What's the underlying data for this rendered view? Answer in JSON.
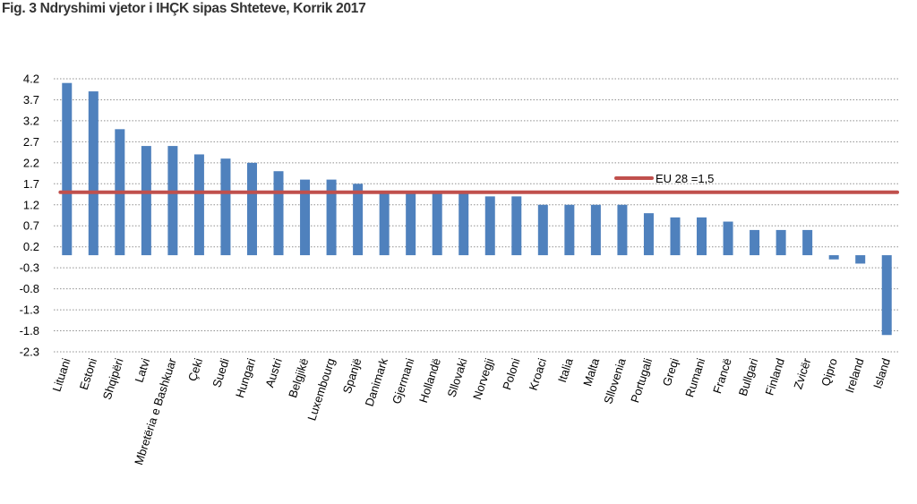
{
  "title": "Fig. 3 Ndryshimi vjetor i IHÇK sipas Shteteve, Korrik 2017",
  "colors": {
    "bar": "#4F81BD",
    "reference_line": "#C0504D",
    "grid": "#909090"
  },
  "chart_data": {
    "type": "bar",
    "title": "Fig. 3 Ndryshimi vjetor i IHÇK sipas Shteteve, Korrik 2017",
    "xlabel": "",
    "ylabel": "",
    "ylim": [
      -2.3,
      4.2
    ],
    "yticks": [
      "4.2",
      "3.7",
      "3.2",
      "2.7",
      "2.2",
      "1.7",
      "1.2",
      "0.7",
      "0.2",
      "-0.3",
      "-0.8",
      "-1.3",
      "-1.8",
      "-2.3"
    ],
    "grid": true,
    "categories": [
      "Lituani",
      "Estoni",
      "Shqipëri",
      "Latvi",
      "Mbretëria e Bashkuar",
      "Çeki",
      "Suedi",
      "Hungari",
      "Austri",
      "Belgjikë",
      "Luxembourg",
      "Spanjë",
      "Danimark",
      "Gjermani",
      "Hollandë",
      "Sllovaki",
      "Norvegji",
      "Poloni",
      "Kroaci",
      "Italia",
      "Malta",
      "Sllovenia",
      "Portugali",
      "Greqi",
      "Rumani",
      "Francë",
      "Bullgari",
      "Finland",
      "Zvicër",
      "Qipro",
      "Ireland",
      "Island"
    ],
    "values": [
      4.1,
      3.9,
      3.0,
      2.6,
      2.6,
      2.4,
      2.3,
      2.2,
      2.0,
      1.8,
      1.8,
      1.7,
      1.5,
      1.5,
      1.5,
      1.5,
      1.4,
      1.4,
      1.2,
      1.2,
      1.2,
      1.2,
      1.0,
      0.9,
      0.9,
      0.8,
      0.6,
      0.6,
      0.6,
      -0.1,
      -0.2,
      -1.9
    ],
    "reference_line": {
      "label": "EU 28 =1,5",
      "value": 1.5
    },
    "legend": "top-right"
  }
}
